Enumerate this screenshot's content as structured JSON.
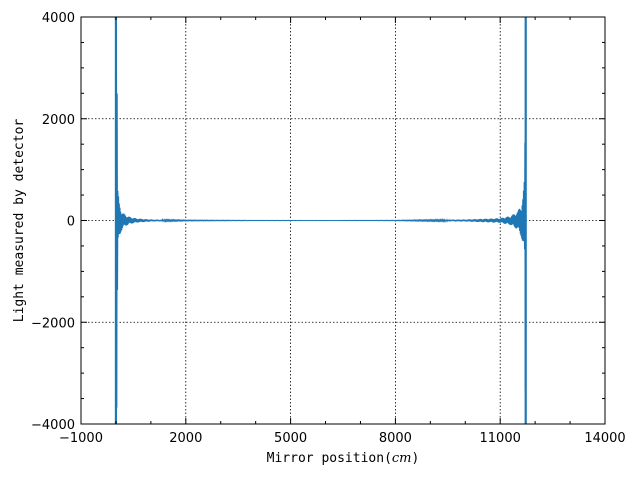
{
  "chart_data": {
    "type": "line",
    "title": "",
    "xlabel": "Mirror position",
    "xlabel_unit": "cm",
    "ylabel": "Light measured by detector",
    "xlim": [
      -1000,
      14000
    ],
    "ylim": [
      -4000,
      4000
    ],
    "x_ticks": [
      -1000,
      2000,
      5000,
      8000,
      11000,
      14000
    ],
    "x_tick_labels": [
      "−1000",
      "2000",
      "5000",
      "8000",
      "11000",
      "14000"
    ],
    "y_ticks": [
      -4000,
      -2000,
      0,
      2000,
      4000
    ],
    "y_tick_labels": [
      "−4000",
      "−2000",
      "0",
      "2000",
      "4000"
    ],
    "grid": true,
    "legend": "none",
    "series": [
      {
        "color": "#1f77b4",
        "x": [
          0,
          30,
          60,
          100,
          150,
          200,
          300,
          400,
          600,
          1000,
          2000,
          4000,
          6000,
          8000,
          10000,
          11000,
          11300,
          11500,
          11600,
          11650,
          11700,
          11710,
          11720,
          11730
        ],
        "envelope": [
          4000,
          4000,
          600,
          350,
          220,
          150,
          100,
          70,
          40,
          20,
          8,
          4,
          3,
          5,
          20,
          45,
          90,
          180,
          320,
          500,
          900,
          4000,
          4000,
          4000
        ]
      }
    ]
  }
}
